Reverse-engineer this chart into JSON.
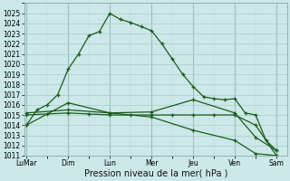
{
  "xlabel": "Pression niveau de la mer( hPa )",
  "background_color": "#cce8e8",
  "plot_bg_color": "#cce8e8",
  "grid_major_color": "#aacccc",
  "grid_minor_color": "#bbdddd",
  "line_color": "#1a5c1a",
  "ylim": [
    1011,
    1026
  ],
  "ymin": 1011,
  "ymax": 1025,
  "yticks": [
    1011,
    1012,
    1013,
    1014,
    1015,
    1016,
    1017,
    1018,
    1019,
    1020,
    1021,
    1022,
    1023,
    1024,
    1025
  ],
  "day_labels": [
    "LuMar",
    "Dim",
    "Lun",
    "Mer",
    "Jeu",
    "Ven",
    "Sam"
  ],
  "day_positions": [
    0,
    2,
    4,
    6,
    8,
    10,
    12
  ],
  "xlim": [
    -0.1,
    12.5
  ],
  "series": [
    {
      "x": [
        0,
        0.5,
        1.0,
        1.5,
        2.0,
        2.5,
        3.0,
        3.5,
        4.0,
        4.5,
        5.0,
        5.5,
        6.0,
        6.5,
        7.0,
        7.5,
        8.0,
        8.5,
        9.0,
        9.5,
        10.0,
        10.5,
        11.0,
        11.5,
        12.0
      ],
      "y": [
        1014.0,
        1015.5,
        1016.0,
        1017.0,
        1019.5,
        1021.0,
        1022.8,
        1023.2,
        1025.0,
        1024.4,
        1024.1,
        1023.7,
        1023.3,
        1022.0,
        1020.5,
        1019.0,
        1017.8,
        1016.8,
        1016.6,
        1016.5,
        1016.6,
        1015.2,
        1015.0,
        1012.5,
        1011.5
      ]
    },
    {
      "x": [
        0,
        1.0,
        2.0,
        3.0,
        4.0,
        5.0,
        6.0,
        7.0,
        8.0,
        9.0,
        10.0,
        11.0,
        12.0
      ],
      "y": [
        1015.0,
        1015.1,
        1015.2,
        1015.1,
        1015.0,
        1015.0,
        1015.0,
        1015.0,
        1015.0,
        1015.0,
        1015.0,
        1014.0,
        1011.0
      ]
    },
    {
      "x": [
        0,
        2.0,
        4.0,
        6.0,
        8.0,
        10.0,
        11.0,
        12.0
      ],
      "y": [
        1014.0,
        1016.2,
        1015.2,
        1015.3,
        1016.5,
        1015.2,
        1012.8,
        1011.5
      ]
    },
    {
      "x": [
        0,
        2.0,
        4.0,
        6.0,
        8.0,
        10.0,
        11.0,
        12.0
      ],
      "y": [
        1015.2,
        1015.5,
        1015.2,
        1014.8,
        1013.5,
        1012.5,
        1011.2,
        1011.0
      ]
    }
  ],
  "tick_fontsize": 5.5,
  "xlabel_fontsize": 7.0,
  "marker": "+",
  "markersize": 3,
  "linewidth": 0.9
}
